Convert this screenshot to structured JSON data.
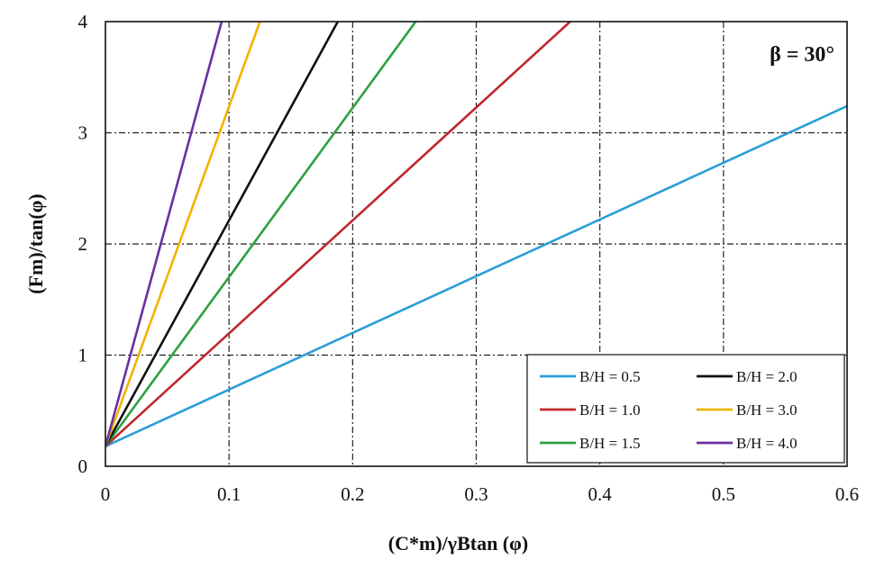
{
  "chart_data": {
    "type": "line",
    "title": "",
    "annotation": "β = 30°",
    "xlabel": "(C*m)/γBtan (φ)",
    "ylabel": "(Fm)/tan(φ)",
    "xlim": [
      0,
      0.6
    ],
    "ylim": [
      0,
      4
    ],
    "x_ticks": [
      "0",
      "0.1",
      "0.2",
      "0.3",
      "0.4",
      "0.5",
      "0.6"
    ],
    "y_ticks": [
      "0",
      "1",
      "2",
      "3",
      "4"
    ],
    "grid": true,
    "legend_position": "bottom-right",
    "series": [
      {
        "name": "B/H = 0.5",
        "color": "#2a9fd8",
        "points": [
          [
            0,
            0.18
          ],
          [
            0.6,
            3.24
          ]
        ]
      },
      {
        "name": "B/H = 1.0",
        "color": "#c0272d",
        "points": [
          [
            0,
            0.18
          ],
          [
            0.376,
            4.0
          ]
        ]
      },
      {
        "name": "B/H = 1.5",
        "color": "#2ca042",
        "points": [
          [
            0,
            0.18
          ],
          [
            0.251,
            4.0
          ]
        ]
      },
      {
        "name": "B/H = 2.0",
        "color": "#111111",
        "points": [
          [
            0,
            0.18
          ],
          [
            0.188,
            4.0
          ]
        ]
      },
      {
        "name": "B/H = 3.0",
        "color": "#f0b400",
        "points": [
          [
            0,
            0.18
          ],
          [
            0.125,
            4.0
          ]
        ]
      },
      {
        "name": "B/H = 4.0",
        "color": "#6b2fa0",
        "points": [
          [
            0,
            0.18
          ],
          [
            0.094,
            4.0
          ]
        ]
      }
    ]
  }
}
